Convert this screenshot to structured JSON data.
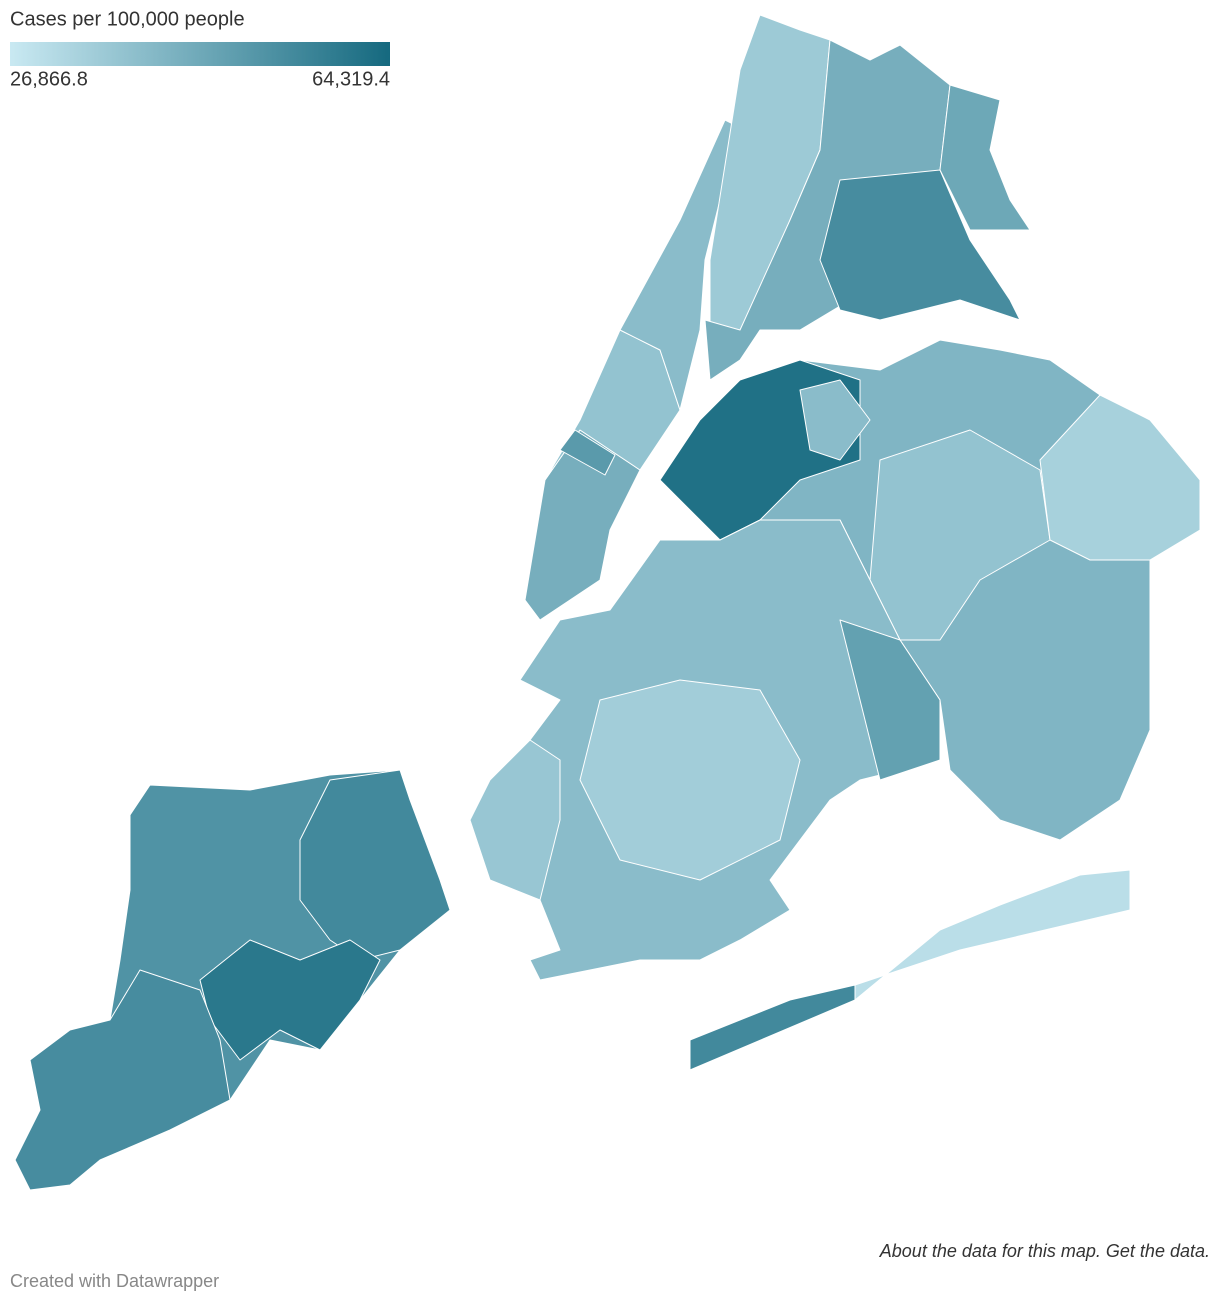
{
  "chart_data": {
    "type": "choropleth",
    "title": "Cases per 100,000 people",
    "scale": {
      "min": {
        "value": 26866.8,
        "label": "26,866.8"
      },
      "max": {
        "value": 64319.4,
        "label": "64,319.4"
      },
      "colors": [
        "#c9e9f2",
        "#15697f"
      ]
    },
    "regions": [
      52000,
      55000,
      60000,
      54000,
      44000,
      38000,
      40000,
      50000,
      36000,
      44000,
      54000,
      46000,
      42000,
      38000,
      34000,
      62000,
      40000,
      40000,
      35000,
      48000,
      37000,
      55000,
      30000
    ],
    "note": "About the data for this map. Get the data.",
    "credit": "Created with Datawrapper"
  }
}
